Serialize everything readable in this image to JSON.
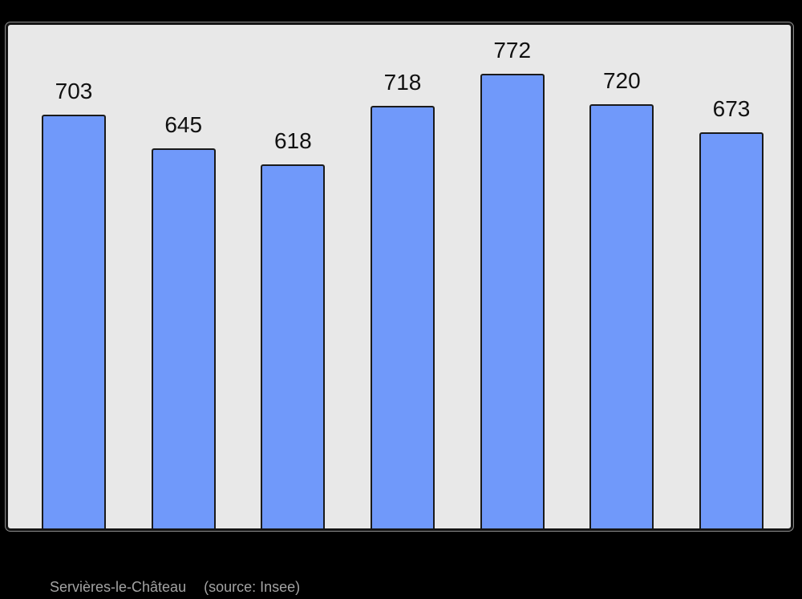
{
  "page": {
    "background": "#000000"
  },
  "chart_data": {
    "type": "bar",
    "values": [
      703,
      645,
      618,
      718,
      772,
      720,
      673
    ],
    "bar_labels": [
      "703",
      "645",
      "618",
      "718",
      "772",
      "720",
      "673"
    ],
    "categories": [],
    "title": "",
    "xlabel": "",
    "ylabel": "",
    "ylim": [
      0,
      855
    ],
    "grid": false,
    "legend": null,
    "bar_color": "#7099FA",
    "bar_border_color": "#1a1a1a",
    "plot_background": "#E8E8E8",
    "frame_border_color": "#141414",
    "value_label_color": "#111111"
  },
  "caption": {
    "place": "Servières-le-Château",
    "source": "(source: Insee)",
    "color": "#A3A3A3"
  }
}
